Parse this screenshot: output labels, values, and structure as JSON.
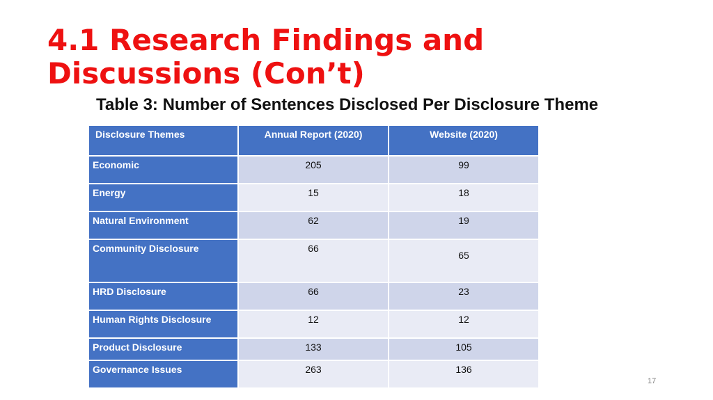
{
  "slide": {
    "title_line1": "4.1 Research Findings and",
    "title_line2": "Discussions (Con’t)",
    "subtitle": "Table 3: Number of Sentences Disclosed Per Disclosure Theme",
    "page_number": "17"
  },
  "table": {
    "headers": [
      "Disclosure Themes",
      "Annual Report (2020)",
      "Website (2020)"
    ],
    "rows": [
      {
        "theme": "Economic",
        "annual_report": "205",
        "website": "99"
      },
      {
        "theme": "Energy",
        "annual_report": "15",
        "website": "18"
      },
      {
        "theme": "Natural Environment",
        "annual_report": "62",
        "website": "19"
      },
      {
        "theme": "Community Disclosure",
        "annual_report": "66",
        "website": "65"
      },
      {
        "theme": "HRD Disclosure",
        "annual_report": "66",
        "website": "23"
      },
      {
        "theme": "Human Rights Disclosure",
        "annual_report": "12",
        "website": "12"
      },
      {
        "theme": "Product Disclosure",
        "annual_report": "133",
        "website": "105"
      },
      {
        "theme": "Governance Issues",
        "annual_report": "263",
        "website": "136"
      }
    ]
  },
  "colors": {
    "title": "#ee1111",
    "header_fill": "#4472c4",
    "band_dark": "#cfd5ea",
    "band_light": "#e9ebf5"
  }
}
